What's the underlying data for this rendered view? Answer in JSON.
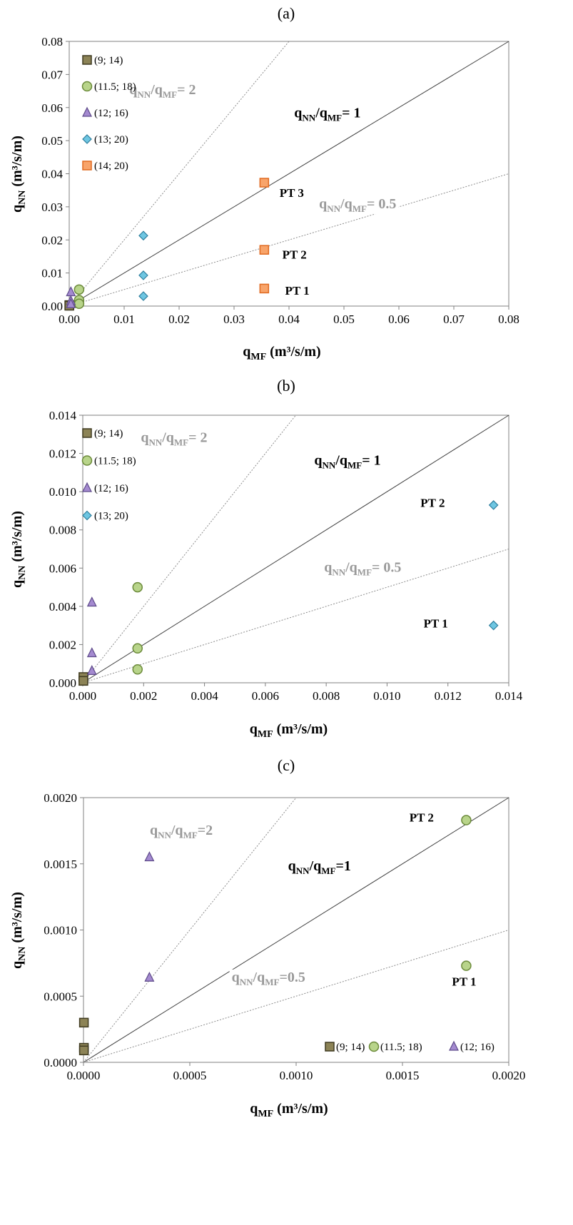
{
  "chart_data": [
    {
      "type": "scatter",
      "panel_label": "(a)",
      "xlabel": "q",
      "xlabel_sub": "MF",
      "xlabel_unit": " (m³/s/m)",
      "ylabel": "q",
      "ylabel_sub": "NN",
      "ylabel_unit": " (m³/s/m)",
      "xlim": [
        0,
        0.08
      ],
      "ylim": [
        0,
        0.08
      ],
      "xticks": [
        "0.00",
        "0.01",
        "0.02",
        "0.03",
        "0.04",
        "0.05",
        "0.06",
        "0.07",
        "0.08"
      ],
      "yticks": [
        "0.00",
        "0.01",
        "0.02",
        "0.03",
        "0.04",
        "0.05",
        "0.06",
        "0.07",
        "0.08"
      ],
      "tick_values": [
        0,
        0.01,
        0.02,
        0.03,
        0.04,
        0.05,
        0.06,
        0.07,
        0.08
      ],
      "grid": false,
      "legend_position": "top-left",
      "ref_lines": [
        {
          "ratio": 2,
          "label_pre": "q",
          "sub1": "NN",
          "mid": "/q",
          "sub2": "MF",
          "label_post": "= 2",
          "style": "dotted-gray",
          "label_at": [
            0.017,
            0.064
          ],
          "label_color": "#999999"
        },
        {
          "ratio": 1,
          "label_pre": "q",
          "sub1": "NN",
          "mid": "/q",
          "sub2": "MF",
          "label_post": "= 1",
          "style": "solid-dark",
          "label_at": [
            0.047,
            0.057
          ],
          "label_color": "#000000"
        },
        {
          "ratio": 0.5,
          "label_pre": "q",
          "sub1": "NN",
          "mid": "/q",
          "sub2": "MF",
          "label_post": "= 0.5",
          "style": "dotted-gray",
          "label_at": [
            0.0525,
            0.0295
          ],
          "label_color": "#999999"
        }
      ],
      "series": [
        {
          "name": "(9; 14)",
          "marker": "square",
          "color": "#8c8356",
          "stroke": "#3f3a20",
          "points": [
            [
              2e-05,
              0.0003
            ],
            [
              2e-05,
              0.0001
            ]
          ]
        },
        {
          "name": "(11.5; 18)",
          "marker": "circle",
          "color": "#b8d48a",
          "stroke": "#6b8a3a",
          "points": [
            [
              0.0018,
              0.005
            ],
            [
              0.0018,
              0.0018
            ],
            [
              0.0018,
              0.0007
            ]
          ]
        },
        {
          "name": "(12; 16)",
          "marker": "triangle",
          "color": "#a48ad0",
          "stroke": "#5e4a8a",
          "points": [
            [
              0.0003,
              0.0042
            ],
            [
              0.0003,
              0.0015
            ],
            [
              0.0003,
              0.0006
            ]
          ]
        },
        {
          "name": "(13; 20)",
          "marker": "diamond",
          "color": "#6ec6e2",
          "stroke": "#2f7f9e",
          "points": [
            [
              0.0135,
              0.0213
            ],
            [
              0.0135,
              0.0093
            ],
            [
              0.0135,
              0.003
            ]
          ]
        },
        {
          "name": "(14; 20)",
          "marker": "square",
          "color": "#f8a46a",
          "stroke": "#e06a20",
          "points": [
            [
              0.0355,
              0.0373
            ],
            [
              0.0355,
              0.017
            ],
            [
              0.0355,
              0.0053
            ]
          ]
        }
      ],
      "annotations": [
        {
          "text": "PT 3",
          "at": [
            0.0405,
            0.033
          ]
        },
        {
          "text": "PT 2",
          "at": [
            0.041,
            0.0143
          ]
        },
        {
          "text": "PT 1",
          "at": [
            0.0415,
            0.0035
          ]
        }
      ]
    },
    {
      "type": "scatter",
      "panel_label": "(b)",
      "xlabel": "q",
      "xlabel_sub": "MF",
      "xlabel_unit": " (m³/s/m)",
      "ylabel": "q",
      "ylabel_sub": "NN",
      "ylabel_unit": " (m³/s/m)",
      "xlim": [
        0,
        0.014
      ],
      "ylim": [
        0,
        0.014
      ],
      "xticks": [
        "0.000",
        "0.002",
        "0.004",
        "0.006",
        "0.008",
        "0.010",
        "0.012",
        "0.014"
      ],
      "yticks": [
        "0.000",
        "0.002",
        "0.004",
        "0.006",
        "0.008",
        "0.010",
        "0.012",
        "0.014"
      ],
      "tick_values": [
        0,
        0.002,
        0.004,
        0.006,
        0.008,
        0.01,
        0.012,
        0.014
      ],
      "grid": false,
      "legend_position": "top-left",
      "ref_lines": [
        {
          "ratio": 2,
          "label_pre": "q",
          "sub1": "NN",
          "mid": "/q",
          "sub2": "MF",
          "label_post": "= 2",
          "style": "dotted-gray",
          "label_at": [
            0.003,
            0.0126
          ],
          "label_color": "#999999"
        },
        {
          "ratio": 1,
          "label_pre": "q",
          "sub1": "NN",
          "mid": "/q",
          "sub2": "MF",
          "label_post": "= 1",
          "style": "solid-dark",
          "label_at": [
            0.0087,
            0.0114
          ],
          "label_color": "#000000"
        },
        {
          "ratio": 0.5,
          "label_pre": "q",
          "sub1": "NN",
          "mid": "/q",
          "sub2": "MF",
          "label_post": "= 0.5",
          "style": "dotted-gray",
          "label_at": [
            0.0092,
            0.0058
          ],
          "label_color": "#999999"
        }
      ],
      "series": [
        {
          "name": "(9; 14)",
          "marker": "square",
          "color": "#8c8356",
          "stroke": "#3f3a20",
          "points": [
            [
              2e-05,
              0.0003
            ],
            [
              2e-05,
              0.0001
            ]
          ]
        },
        {
          "name": "(11.5; 18)",
          "marker": "circle",
          "color": "#b8d48a",
          "stroke": "#6b8a3a",
          "points": [
            [
              0.0018,
              0.005
            ],
            [
              0.0018,
              0.0018
            ],
            [
              0.0018,
              0.0007
            ]
          ]
        },
        {
          "name": "(12; 16)",
          "marker": "triangle",
          "color": "#a48ad0",
          "stroke": "#5e4a8a",
          "points": [
            [
              0.0003,
              0.0042
            ],
            [
              0.0003,
              0.00155
            ],
            [
              0.0003,
              0.00062
            ]
          ]
        },
        {
          "name": "(13; 20)",
          "marker": "diamond",
          "color": "#6ec6e2",
          "stroke": "#2f7f9e",
          "points": [
            [
              0.0135,
              0.0093
            ],
            [
              0.0135,
              0.003
            ]
          ]
        }
      ],
      "annotations": [
        {
          "text": "PT 2",
          "at": [
            0.0115,
            0.0092
          ]
        },
        {
          "text": "PT 1",
          "at": [
            0.0116,
            0.0029
          ]
        }
      ]
    },
    {
      "type": "scatter",
      "panel_label": "(c)",
      "xlabel": "q",
      "xlabel_sub": "MF",
      "xlabel_unit": " (m³/s/m)",
      "ylabel": "q",
      "ylabel_sub": "NN",
      "ylabel_unit": " (m³/s/m)",
      "xlim": [
        0,
        0.002
      ],
      "ylim": [
        0,
        0.002
      ],
      "xticks": [
        "0.0000",
        "0.0005",
        "0.0010",
        "0.0015",
        "0.0020"
      ],
      "yticks": [
        "0.0000",
        "0.0005",
        "0.0010",
        "0.0015",
        "0.0020"
      ],
      "tick_values": [
        0,
        0.0005,
        0.001,
        0.0015,
        0.002
      ],
      "grid": false,
      "legend_position": "bottom-right",
      "ref_lines": [
        {
          "ratio": 2,
          "label_pre": "q",
          "sub1": "NN",
          "mid": "/q",
          "sub2": "MF",
          "label_post": "=2",
          "style": "dotted-gray",
          "label_at": [
            0.00046,
            0.00172
          ],
          "label_color": "#999999"
        },
        {
          "ratio": 1,
          "label_pre": "q",
          "sub1": "NN",
          "mid": "/q",
          "sub2": "MF",
          "label_post": "=1",
          "style": "solid-dark",
          "label_at": [
            0.00111,
            0.00145
          ],
          "label_color": "#000000"
        },
        {
          "ratio": 0.5,
          "label_pre": "q",
          "sub1": "NN",
          "mid": "/q",
          "sub2": "MF",
          "label_post": "=0.5",
          "style": "dotted-gray",
          "label_at": [
            0.00087,
            0.00061
          ],
          "label_color": "#999999"
        }
      ],
      "series": [
        {
          "name": "(9; 14)",
          "marker": "square",
          "color": "#8c8356",
          "stroke": "#3f3a20",
          "points": [
            [
              2e-06,
              0.0003
            ],
            [
              2e-06,
              0.00011
            ],
            [
              2e-06,
              9e-05
            ]
          ]
        },
        {
          "name": "(11.5; 18)",
          "marker": "circle",
          "color": "#b8d48a",
          "stroke": "#6b8a3a",
          "points": [
            [
              0.0018,
              0.00183
            ],
            [
              0.0018,
              0.00073
            ]
          ]
        },
        {
          "name": "(12; 16)",
          "marker": "triangle",
          "color": "#a48ad0",
          "stroke": "#5e4a8a",
          "points": [
            [
              0.00031,
              0.00155
            ],
            [
              0.00031,
              0.00064
            ]
          ]
        }
      ],
      "annotations": [
        {
          "text": "PT 2",
          "at": [
            0.00159,
            0.00182
          ]
        },
        {
          "text": "PT 1",
          "at": [
            0.00179,
            0.00058
          ]
        }
      ]
    }
  ]
}
